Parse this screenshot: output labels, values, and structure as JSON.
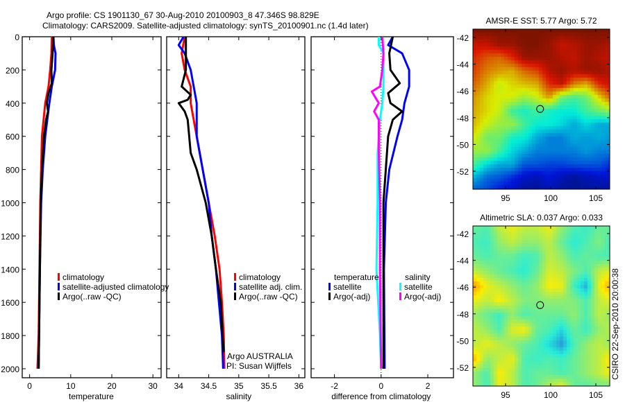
{
  "title_line1": "Argo profile: CS 1901130_67 30-Aug-2010 20100903_8 47.346S 98.829E",
  "title_line2": "Climatology: CARS2009. Satellite-adjusted climatology: synTS_20100901.nc (1.4d later)",
  "colors": {
    "climatology": "#ff0000",
    "satellite": "#0000ff",
    "argo": "#000000",
    "sal_satellite": "#00ffff",
    "sal_argo": "#ff00ff"
  },
  "chart_data": [
    {
      "type": "line",
      "id": "temperature",
      "xlabel": "temperature",
      "ylabel": "",
      "xlim": [
        -1.8,
        32
      ],
      "ylim": [
        2000,
        0
      ],
      "xticks": [
        0,
        10,
        20,
        30
      ],
      "yticks": [
        0,
        200,
        400,
        600,
        800,
        1000,
        1200,
        1400,
        1600,
        1800,
        2000
      ],
      "legend": {
        "placement": "center-right",
        "entries": [
          "climatology",
          "satellite-adjusted climatology",
          "Argo(..raw -QC)"
        ]
      },
      "series": [
        {
          "name": "climatology",
          "color": "#ff0000",
          "depth": [
            0,
            100,
            200,
            300,
            400,
            500,
            600,
            800,
            1000,
            1400,
            1800,
            2000
          ],
          "values": [
            5.4,
            5.3,
            5.0,
            4.6,
            3.8,
            3.4,
            3.0,
            2.8,
            2.6,
            2.4,
            2.2,
            1.9
          ]
        },
        {
          "name": "satellite-adjusted climatology",
          "color": "#0000ff",
          "depth": [
            0,
            50,
            100,
            200,
            300,
            400,
            500,
            600,
            800,
            1000,
            1400,
            1800,
            2000
          ],
          "values": [
            5.8,
            5.9,
            6.3,
            6.2,
            5.4,
            4.8,
            4.3,
            3.8,
            3.2,
            2.8,
            2.5,
            2.3,
            2.2
          ]
        },
        {
          "name": "Argo(..raw -QC)",
          "color": "#000000",
          "depth": [
            0,
            100,
            200,
            280,
            340,
            400,
            450,
            500,
            600,
            800,
            1000,
            1400,
            1800,
            2000
          ],
          "values": [
            5.8,
            5.6,
            5.3,
            5.4,
            4.6,
            4.2,
            4.5,
            4.0,
            3.5,
            3.0,
            2.7,
            2.5,
            2.3,
            2.2
          ]
        }
      ]
    },
    {
      "type": "line",
      "id": "salinity",
      "xlabel": "salinity",
      "xlim": [
        33.8,
        36.1
      ],
      "ylim": [
        2000,
        0
      ],
      "xticks": [
        34,
        34.5,
        35,
        35.5,
        36
      ],
      "yticks": [
        0,
        200,
        400,
        600,
        800,
        1000,
        1200,
        1400,
        1600,
        1800,
        2000
      ],
      "legend": {
        "placement": "center-right",
        "entries": [
          "climatology",
          "satellite adj. clim.",
          "Argo(..raw -QC)"
        ]
      },
      "annotation": [
        "Argo AUSTRALIA",
        "PI: Susan Wijffels"
      ],
      "series": [
        {
          "name": "climatology",
          "color": "#ff0000",
          "depth": [
            0,
            100,
            200,
            300,
            400,
            600,
            800,
            1000,
            1200,
            1400,
            1600,
            1800,
            2000
          ],
          "values": [
            34.1,
            34.05,
            34.1,
            34.2,
            34.2,
            34.3,
            34.4,
            34.5,
            34.6,
            34.68,
            34.72,
            34.75,
            34.76
          ]
        },
        {
          "name": "satellite adj. clim.",
          "color": "#0000ff",
          "depth": [
            0,
            50,
            100,
            200,
            300,
            400,
            600,
            800,
            1000,
            1200,
            1400,
            1600,
            1800,
            2000
          ],
          "values": [
            34.08,
            34.0,
            34.1,
            34.2,
            34.25,
            34.3,
            34.3,
            34.4,
            34.5,
            34.55,
            34.62,
            34.67,
            34.72,
            34.74
          ]
        },
        {
          "name": "Argo(..raw -QC)",
          "color": "#000000",
          "depth": [
            0,
            80,
            200,
            300,
            350,
            380,
            400,
            450,
            500,
            700,
            800,
            1000,
            1200,
            1400,
            1600,
            1800,
            1900
          ],
          "values": [
            34.12,
            34.12,
            34.12,
            34.05,
            34.2,
            34.15,
            34.0,
            34.1,
            34.15,
            34.2,
            34.3,
            34.45,
            34.55,
            34.62,
            34.7,
            34.73,
            34.75
          ]
        }
      ]
    },
    {
      "type": "line",
      "id": "difference",
      "xlabel": "difference from climatology",
      "xlim": [
        -3,
        3.1
      ],
      "ylim": [
        2000,
        0
      ],
      "xticks": [
        -2,
        0,
        2
      ],
      "yticks": [
        0,
        200,
        400,
        600,
        800,
        1000,
        1200,
        1400,
        1600,
        1800,
        2000
      ],
      "legend": {
        "placement": "center",
        "temperature_header": "temperature",
        "salinity_header": "salinity",
        "entries": [
          "satellite",
          "Argo(-adj)",
          "satellite",
          "Argo(-adj)"
        ]
      },
      "series": [
        {
          "name": "temperature satellite",
          "color": "#0000ff",
          "depth": [
            0,
            50,
            100,
            200,
            300,
            400,
            500,
            600,
            800,
            1000,
            1400,
            2000
          ],
          "values": [
            0.5,
            0.3,
            0.9,
            1.2,
            1.2,
            1.0,
            0.9,
            0.7,
            0.35,
            0.2,
            0.12,
            0.15
          ]
        },
        {
          "name": "temperature Argo(-adj)",
          "color": "#000000",
          "depth": [
            0,
            100,
            200,
            280,
            340,
            400,
            450,
            500,
            600,
            800,
            1000,
            1400,
            2000
          ],
          "values": [
            0.5,
            0.35,
            0.4,
            0.8,
            0.3,
            0.4,
            0.9,
            0.5,
            0.3,
            0.2,
            0.1,
            0.1,
            0.1
          ]
        },
        {
          "name": "salinity satellite",
          "color": "#00ffff",
          "depth": [
            0,
            50,
            100,
            200,
            300,
            400,
            500,
            700,
            1000,
            1400,
            1800,
            2000
          ],
          "values": [
            -0.1,
            -0.1,
            0.1,
            0.1,
            0.1,
            0.05,
            -0.05,
            -0.15,
            -0.15,
            -0.2,
            -0.05,
            0
          ]
        },
        {
          "name": "salinity Argo(-adj)",
          "color": "#ff00ff",
          "depth": [
            0,
            100,
            200,
            300,
            330,
            400,
            450,
            500,
            700,
            1000,
            1400,
            2000
          ],
          "values": [
            0.05,
            0.1,
            0.05,
            -0.05,
            -0.4,
            -0.1,
            -0.3,
            -0.1,
            -0.1,
            -0.05,
            -0.05,
            0
          ]
        }
      ]
    },
    {
      "type": "heatmap",
      "id": "sst-map",
      "title": "AMSR-E SST: 5.77 Argo: 5.72",
      "xlim": [
        91.3,
        106.5
      ],
      "ylim": [
        -53.35,
        -41.4
      ],
      "xticks": [
        95,
        100,
        105
      ],
      "yticks": [
        -42,
        -44,
        -46,
        -48,
        -50,
        -52
      ],
      "marker": {
        "lon": 98.829,
        "lat": -47.346
      },
      "grid": [
        [
          0.98,
          0.98,
          0.98,
          0.98,
          0.98,
          0.98,
          0.98,
          0.98,
          0.98,
          0.98,
          0.98,
          0.98
        ],
        [
          0.9,
          0.9,
          0.95,
          0.95,
          0.98,
          0.98,
          0.95,
          0.9,
          0.92,
          0.95,
          0.95,
          0.92
        ],
        [
          0.85,
          0.8,
          0.78,
          0.85,
          0.95,
          0.95,
          0.95,
          0.92,
          0.9,
          0.95,
          0.92,
          0.9
        ],
        [
          0.82,
          0.75,
          0.72,
          0.7,
          0.78,
          0.82,
          0.92,
          0.95,
          0.92,
          0.95,
          0.95,
          0.92
        ],
        [
          0.78,
          0.7,
          0.6,
          0.65,
          0.68,
          0.7,
          0.85,
          0.9,
          0.75,
          0.7,
          0.85,
          0.9
        ],
        [
          0.72,
          0.65,
          0.62,
          0.62,
          0.55,
          0.6,
          0.72,
          0.5,
          0.45,
          0.5,
          0.65,
          0.8
        ],
        [
          0.7,
          0.65,
          0.6,
          0.45,
          0.4,
          0.45,
          0.4,
          0.38,
          0.38,
          0.45,
          0.5,
          0.55
        ],
        [
          0.68,
          0.6,
          0.55,
          0.55,
          0.45,
          0.38,
          0.38,
          0.35,
          0.3,
          0.35,
          0.3,
          0.3
        ],
        [
          0.62,
          0.5,
          0.5,
          0.4,
          0.38,
          0.3,
          0.25,
          0.25,
          0.3,
          0.28,
          0.3,
          0.28
        ],
        [
          0.55,
          0.55,
          0.45,
          0.35,
          0.3,
          0.25,
          0.25,
          0.25,
          0.25,
          0.28,
          0.25,
          0.25
        ],
        [
          0.45,
          0.35,
          0.3,
          0.3,
          0.2,
          0.2,
          0.18,
          0.18,
          0.2,
          0.2,
          0.2,
          0.15
        ],
        [
          0.3,
          0.22,
          0.2,
          0.15,
          0.1,
          0.08,
          0.12,
          0.08,
          0.05,
          0.08,
          0.1,
          0.1
        ],
        [
          0.2,
          0.18,
          0.12,
          0.1,
          0.05,
          0.05,
          0.08,
          0.05,
          0.05,
          0.05,
          0.05,
          0.05
        ]
      ]
    },
    {
      "type": "heatmap",
      "id": "sla-map",
      "title": "Altimetric SLA: 0.037 Argo: 0.033",
      "xlim": [
        91.3,
        106.5
      ],
      "ylim": [
        -53.4,
        -41.4
      ],
      "xticks": [
        95,
        100,
        105
      ],
      "yticks": [
        -42,
        -44,
        -46,
        -48,
        -50,
        -52
      ],
      "marker": {
        "lon": 98.829,
        "lat": -47.346
      },
      "side_label": "CSIRO 22-Sep-2010 20:00:38",
      "grid": [
        [
          0.45,
          0.42,
          0.55,
          0.6,
          0.55,
          0.55,
          0.6,
          0.5,
          0.42,
          0.4,
          0.45,
          0.45
        ],
        [
          0.42,
          0.4,
          0.5,
          0.55,
          0.5,
          0.5,
          0.55,
          0.45,
          0.38,
          0.42,
          0.48,
          0.4
        ],
        [
          0.45,
          0.42,
          0.45,
          0.45,
          0.4,
          0.42,
          0.55,
          0.5,
          0.42,
          0.45,
          0.42,
          0.42
        ],
        [
          0.55,
          0.5,
          0.45,
          0.42,
          0.38,
          0.45,
          0.58,
          0.55,
          0.48,
          0.42,
          0.55,
          0.6
        ],
        [
          0.72,
          0.6,
          0.55,
          0.5,
          0.45,
          0.5,
          0.62,
          0.6,
          0.4,
          0.3,
          0.6,
          0.72
        ],
        [
          0.6,
          0.55,
          0.62,
          0.55,
          0.48,
          0.48,
          0.5,
          0.5,
          0.48,
          0.42,
          0.55,
          0.6
        ],
        [
          0.5,
          0.45,
          0.4,
          0.5,
          0.42,
          0.45,
          0.45,
          0.45,
          0.5,
          0.42,
          0.55,
          0.5
        ],
        [
          0.55,
          0.5,
          0.42,
          0.58,
          0.62,
          0.45,
          0.42,
          0.35,
          0.45,
          0.4,
          0.5,
          0.55
        ],
        [
          0.55,
          0.6,
          0.55,
          0.5,
          0.45,
          0.42,
          0.35,
          0.28,
          0.42,
          0.5,
          0.55,
          0.5
        ],
        [
          0.68,
          0.5,
          0.55,
          0.6,
          0.42,
          0.4,
          0.42,
          0.4,
          0.45,
          0.5,
          0.55,
          0.65
        ],
        [
          0.5,
          0.42,
          0.62,
          0.55,
          0.42,
          0.45,
          0.45,
          0.42,
          0.45,
          0.5,
          0.55,
          0.62
        ],
        [
          0.5,
          0.4,
          0.6,
          0.55,
          0.42,
          0.45,
          0.55,
          0.62,
          0.45,
          0.42,
          0.45,
          0.45
        ]
      ]
    }
  ]
}
